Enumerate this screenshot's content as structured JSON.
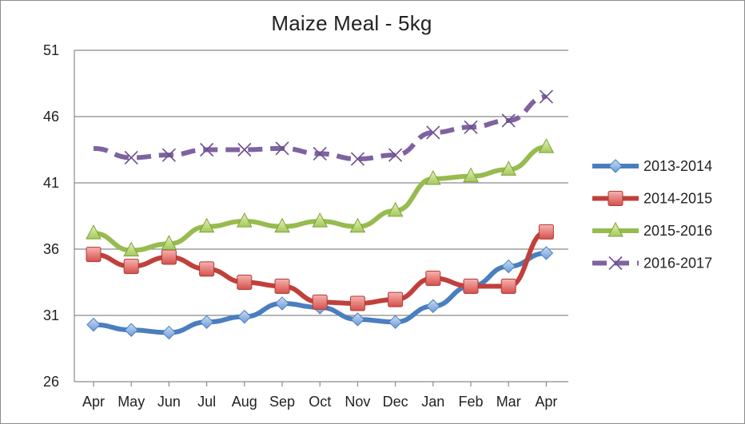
{
  "chart_data": {
    "type": "line",
    "title": "Maize Meal - 5kg",
    "xlabel": "",
    "ylabel": "",
    "ylim": [
      26,
      51
    ],
    "yticks": [
      26,
      31,
      36,
      41,
      46,
      51
    ],
    "grid": "horizontal",
    "legend_position": "right",
    "categories": [
      "Apr",
      "May",
      "Jun",
      "Jul",
      "Aug",
      "Sep",
      "Oct",
      "Nov",
      "Dec",
      "Jan",
      "Feb",
      "Mar",
      "Apr"
    ],
    "series": [
      {
        "name": "2013-2014",
        "color": "#4a7ebf",
        "marker": "diamond",
        "dashed": false,
        "values": [
          30.3,
          29.9,
          29.7,
          30.5,
          30.9,
          31.9,
          31.6,
          30.7,
          30.5,
          31.7,
          33.2,
          34.7,
          35.7
        ]
      },
      {
        "name": "2014-2015",
        "color": "#c0403c",
        "marker": "square",
        "dashed": false,
        "values": [
          35.6,
          34.7,
          35.4,
          34.5,
          33.5,
          33.2,
          32.0,
          31.9,
          32.2,
          33.8,
          33.2,
          33.2,
          37.3
        ]
      },
      {
        "name": "2015-2016",
        "color": "#97bb4e",
        "marker": "triangle",
        "dashed": false,
        "values": [
          37.2,
          35.9,
          36.4,
          37.7,
          38.1,
          37.7,
          38.1,
          37.7,
          38.9,
          41.3,
          41.5,
          42.0,
          43.7
        ]
      },
      {
        "name": "2016-2017",
        "color": "#7f62a1",
        "marker": "x",
        "dashed": true,
        "values": [
          43.6,
          42.9,
          43.1,
          43.5,
          43.5,
          43.6,
          43.2,
          42.8,
          43.1,
          44.8,
          45.2,
          45.7,
          47.5
        ]
      }
    ]
  }
}
